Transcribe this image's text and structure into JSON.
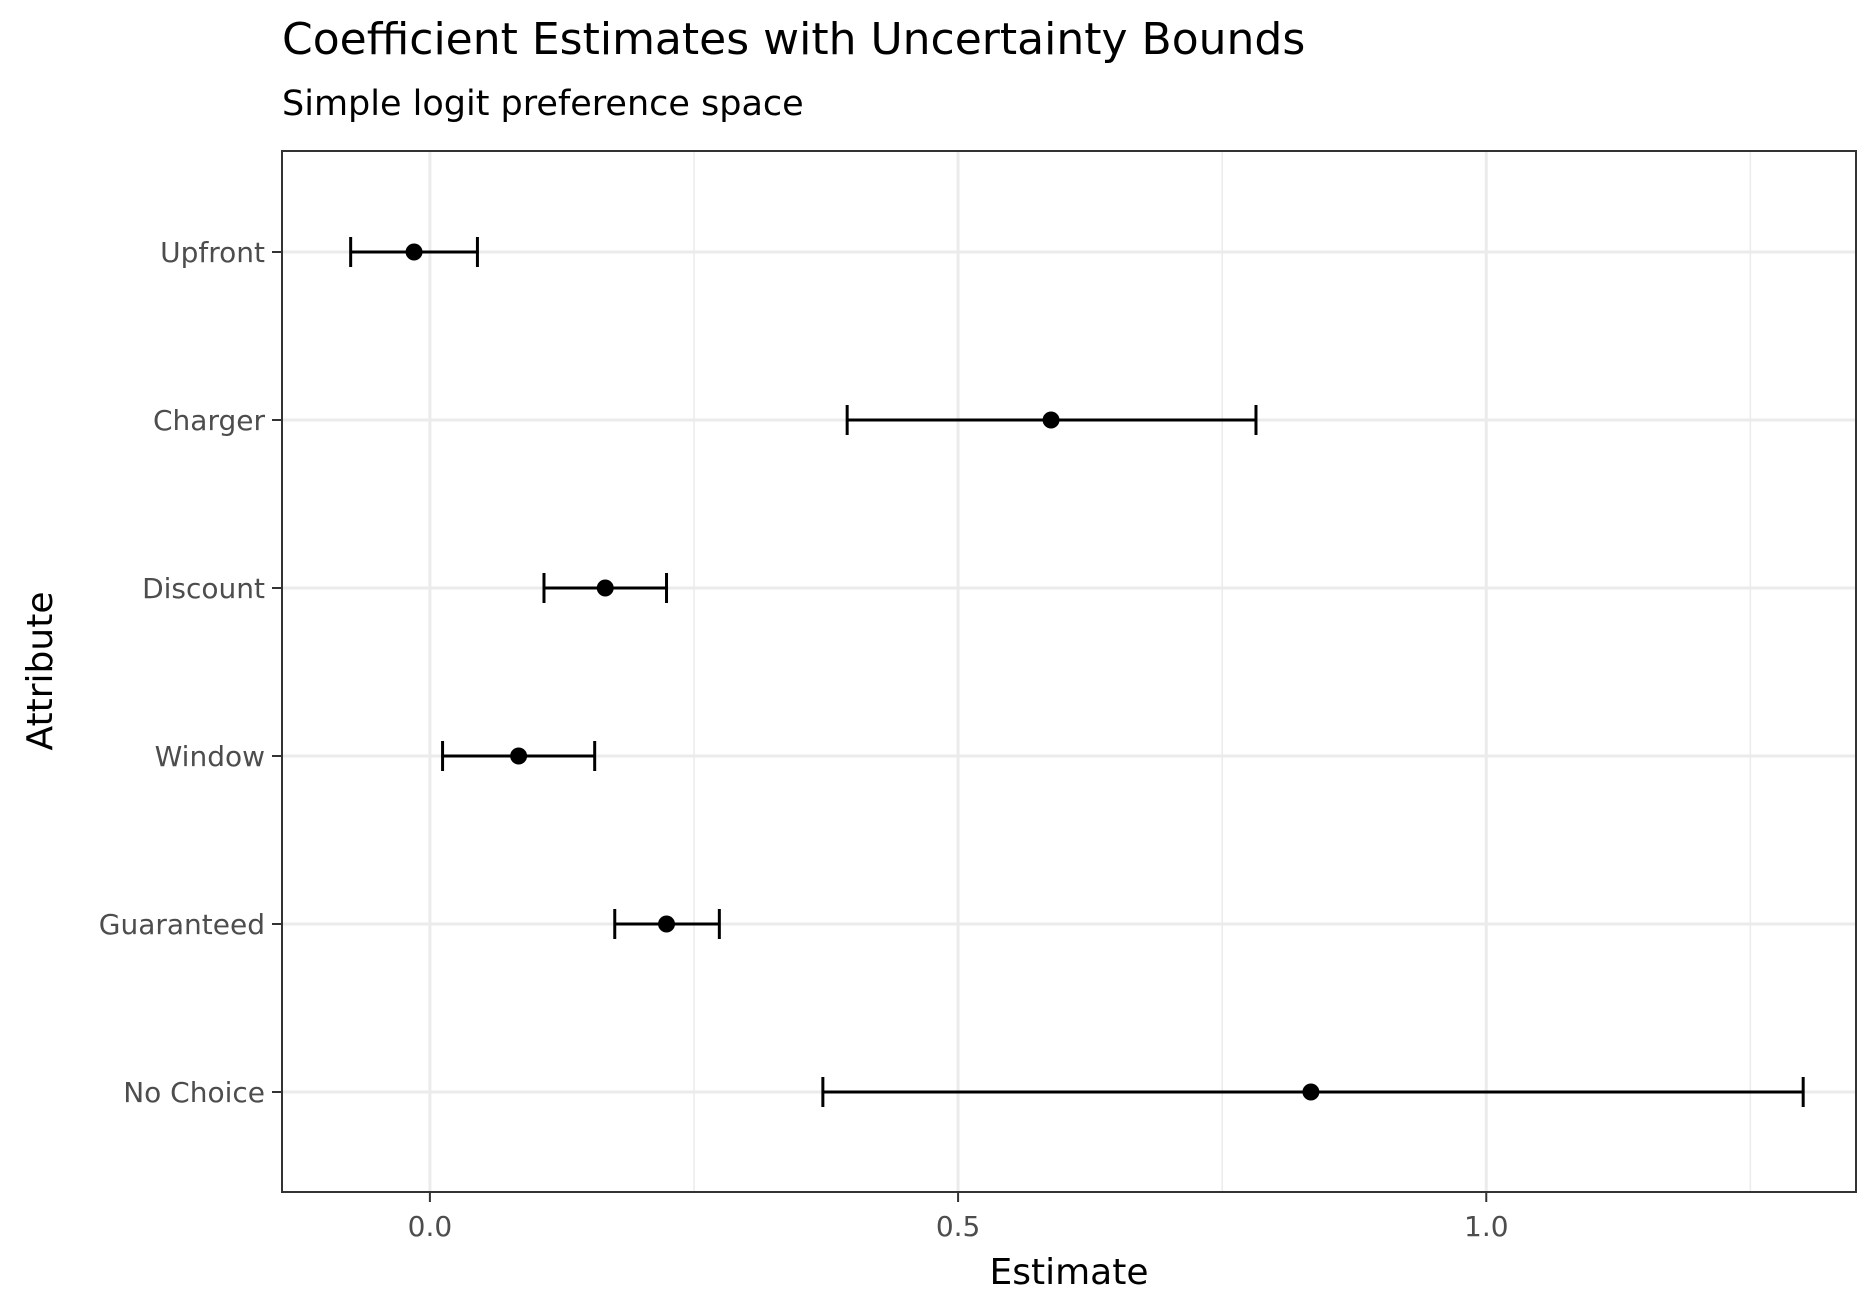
{
  "chart_data": {
    "type": "scatter",
    "title": "Coefficient Estimates with Uncertainty Bounds",
    "subtitle": "Simple logit preference space",
    "xlabel": "Estimate",
    "ylabel": "Attribute",
    "xlim": [
      -0.14,
      1.35
    ],
    "xticks": [
      0.0,
      0.5,
      1.0
    ],
    "xtick_labels": [
      "0.0",
      "0.5",
      "1.0"
    ],
    "grid": true,
    "categories": [
      "Upfront",
      "Charger",
      "Discount",
      "Window",
      "Guaranteed",
      "No Choice"
    ],
    "series": [
      {
        "estimates": [
          -0.015,
          0.588,
          0.166,
          0.084,
          0.224,
          0.834
        ],
        "lower": [
          -0.075,
          0.395,
          0.108,
          0.012,
          0.175,
          0.372
        ],
        "upper": [
          0.045,
          0.782,
          0.224,
          0.156,
          0.274,
          1.3
        ]
      }
    ],
    "colors": {
      "point": "#000000",
      "errorbar": "#000000",
      "grid": "#ebebeb",
      "panel_border": "#333333",
      "tick_text": "#4d4d4d"
    }
  }
}
